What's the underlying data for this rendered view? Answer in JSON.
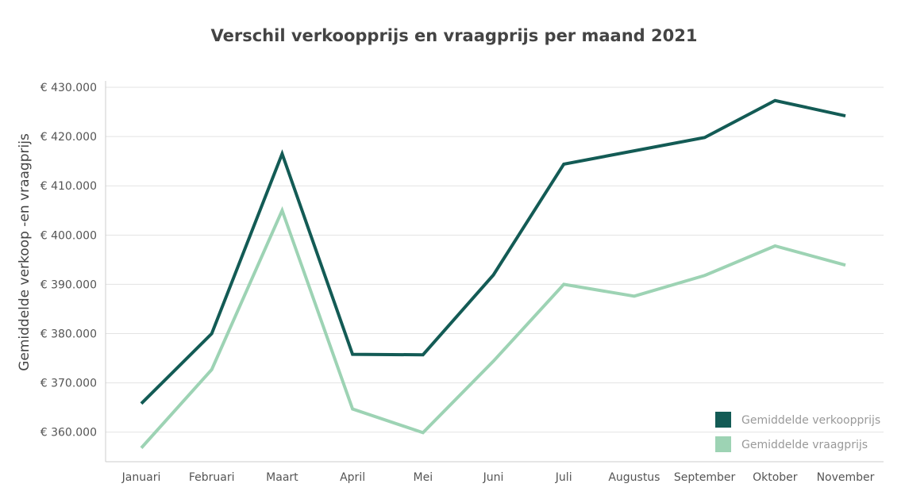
{
  "chart_data": {
    "type": "line",
    "title": "Verschil verkoopprijs en vraagprijs per maand 2021",
    "xlabel": "",
    "ylabel": "Gemiddelde verkoop -en vraagprijs",
    "categories": [
      "Januari",
      "Februari",
      "Maart",
      "April",
      "Mei",
      "Juni",
      "Juli",
      "Augustus",
      "September",
      "Oktober",
      "November"
    ],
    "ylim": [
      354000,
      430000
    ],
    "yticks": [
      360000,
      370000,
      380000,
      390000,
      400000,
      410000,
      420000,
      430000
    ],
    "ytick_labels": [
      "€ 360.000",
      "€ 370.000",
      "€ 380.000",
      "€ 390.000",
      "€ 400.000",
      "€ 410.000",
      "€ 420.000",
      "€ 430.000"
    ],
    "grid": true,
    "legend_position": "bottom-right",
    "series": [
      {
        "name": "Gemiddelde verkoopprijs",
        "color": "#135b55",
        "values": [
          365800,
          380000,
          416500,
          375800,
          375700,
          391900,
          414400,
          417100,
          419800,
          427300,
          424200
        ]
      },
      {
        "name": "Gemiddelde vraagprijs",
        "color": "#9dd3b4",
        "values": [
          356800,
          372700,
          405000,
          364700,
          359900,
          374400,
          390000,
          387600,
          391800,
          397800,
          393900
        ]
      }
    ]
  }
}
